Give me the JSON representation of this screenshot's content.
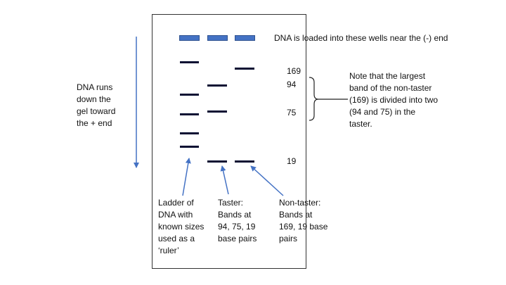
{
  "labels": {
    "wells_note": "DNA is loaded into these wells near the (-) end",
    "direction_note": "DNA runs\ndown the\ngel toward\nthe + end",
    "bracket_note": "Note that the largest\nband of the non-taster\n(169) is divided into two\n(94 and 75) in the\ntaster.",
    "ladder_caption": "Ladder of\nDNA with\nknown sizes\nused as a\n‘ruler’",
    "taster_caption": "Taster:\nBands at\n94, 75, 19\nbase pairs",
    "nontaster_caption": "Non-taster:\nBands at\n169, 19 base\npairs"
  },
  "band_sizes": [
    "169",
    "94",
    "75",
    "19"
  ],
  "colors": {
    "well": "#4472c4",
    "band": "#0a1033",
    "arrow": "#4472c4"
  }
}
